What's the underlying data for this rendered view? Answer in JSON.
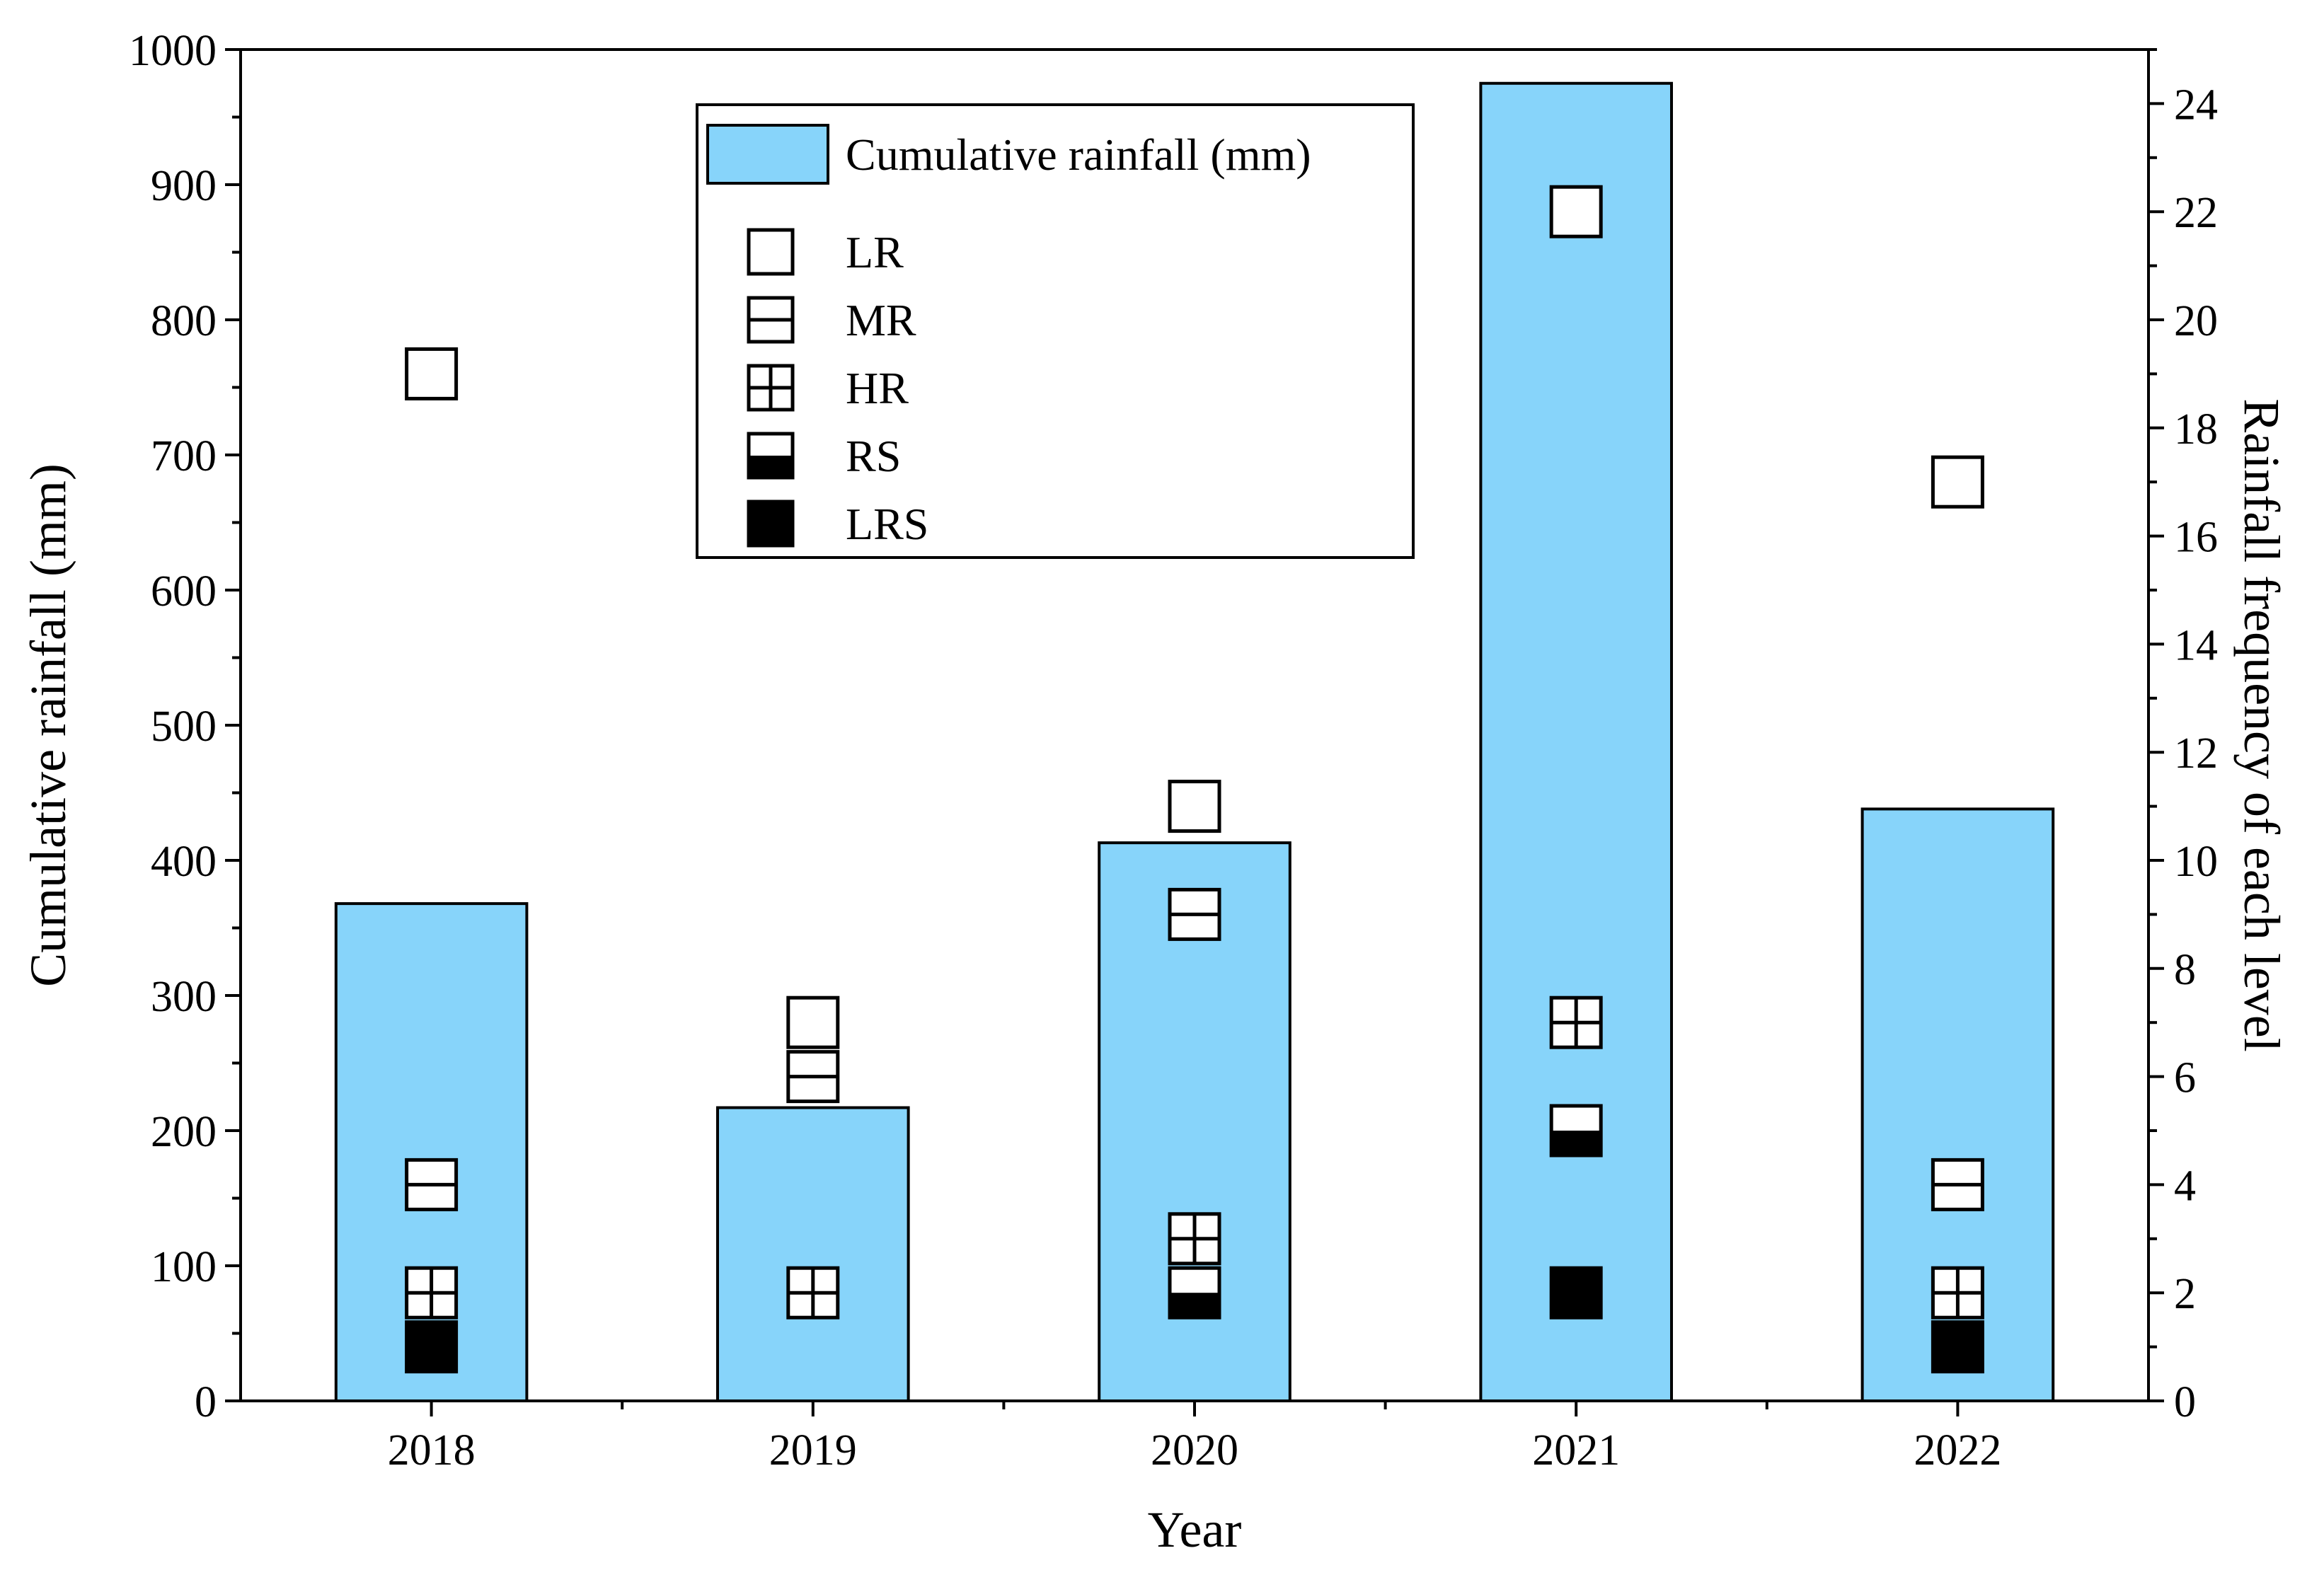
{
  "chart_data": {
    "type": "bar",
    "categories": [
      "2018",
      "2019",
      "2020",
      "2021",
      "2022"
    ],
    "xlabel": "Year",
    "ylabel": "Cumulative rainfall (mm)",
    "y2label": "Rainfall frequency of each level",
    "ylim": [
      0,
      1000
    ],
    "y2lim": [
      0,
      25
    ],
    "yticks": [
      "0",
      "100",
      "200",
      "300",
      "400",
      "500",
      "600",
      "700",
      "800",
      "900",
      "1000"
    ],
    "y2ticks": [
      "0",
      "2",
      "4",
      "6",
      "8",
      "10",
      "12",
      "14",
      "16",
      "18",
      "20",
      "22",
      "24"
    ],
    "bars": {
      "name": "Cumulative rainfall (mm)",
      "values": [
        368,
        217,
        413,
        975,
        438
      ],
      "color": "#87D4FA"
    },
    "series": [
      {
        "name": "LR",
        "marker": "empty-square",
        "values": [
          19,
          7,
          11,
          22,
          17
        ]
      },
      {
        "name": "MR",
        "marker": "horizontal-line-square",
        "values": [
          4,
          6,
          9,
          null,
          4
        ]
      },
      {
        "name": "HR",
        "marker": "cross-square",
        "values": [
          2,
          2,
          3,
          7,
          2
        ]
      },
      {
        "name": "RS",
        "marker": "half-filled-square",
        "values": [
          null,
          null,
          2,
          5,
          null
        ]
      },
      {
        "name": "LRS",
        "marker": "filled-square",
        "values": [
          1,
          null,
          null,
          2,
          1
        ]
      }
    ],
    "legend": {
      "position": "top-center",
      "entries": [
        "Cumulative rainfall (mm)",
        "LR",
        "MR",
        "HR",
        "RS",
        "LRS"
      ]
    }
  }
}
